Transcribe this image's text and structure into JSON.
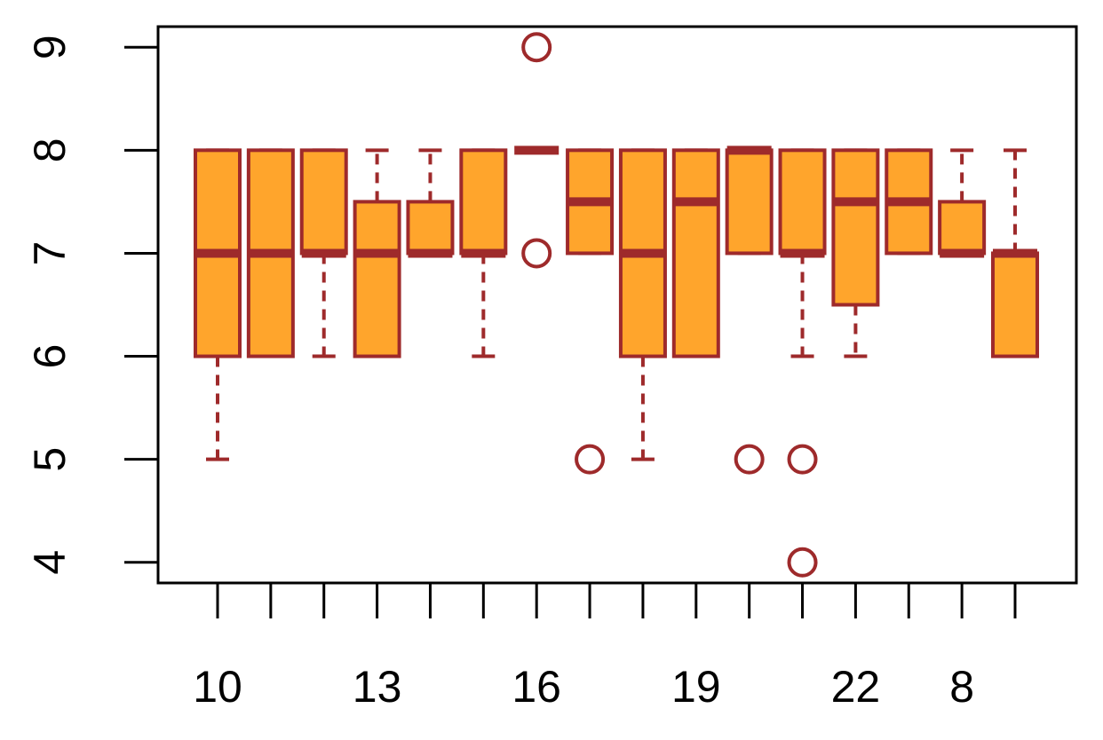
{
  "chart_data": {
    "type": "boxplot",
    "categories": [
      "10",
      null,
      null,
      "13",
      null,
      null,
      "16",
      null,
      null,
      "19",
      null,
      null,
      "22",
      null,
      "8",
      null
    ],
    "boxes": [
      {
        "whislo": 5,
        "q1": 6,
        "med": 7,
        "q3": 8,
        "whishi": 8,
        "outliers": []
      },
      {
        "whislo": 6,
        "q1": 6,
        "med": 7,
        "q3": 8,
        "whishi": 8,
        "outliers": []
      },
      {
        "whislo": 6,
        "q1": 7,
        "med": 7,
        "q3": 8,
        "whishi": 8,
        "outliers": []
      },
      {
        "whislo": 6,
        "q1": 6,
        "med": 7,
        "q3": 7.5,
        "whishi": 8,
        "outliers": []
      },
      {
        "whislo": 7,
        "q1": 7,
        "med": 7,
        "q3": 7.5,
        "whishi": 8,
        "outliers": []
      },
      {
        "whislo": 6,
        "q1": 7,
        "med": 7,
        "q3": 8,
        "whishi": 8,
        "outliers": []
      },
      {
        "whislo": 8,
        "q1": 8,
        "med": 8,
        "q3": 8,
        "whishi": 8,
        "outliers": [
          9,
          7
        ]
      },
      {
        "whislo": 7,
        "q1": 7,
        "med": 7.5,
        "q3": 8,
        "whishi": 8,
        "outliers": [
          5
        ]
      },
      {
        "whislo": 5,
        "q1": 6,
        "med": 7,
        "q3": 8,
        "whishi": 8,
        "outliers": []
      },
      {
        "whislo": 6,
        "q1": 6,
        "med": 7.5,
        "q3": 8,
        "whishi": 8,
        "outliers": []
      },
      {
        "whislo": 7,
        "q1": 7,
        "med": 8,
        "q3": 8,
        "whishi": 8,
        "outliers": [
          5
        ]
      },
      {
        "whislo": 6,
        "q1": 7,
        "med": 7,
        "q3": 8,
        "whishi": 8,
        "outliers": [
          5,
          4
        ]
      },
      {
        "whislo": 6,
        "q1": 6.5,
        "med": 7.5,
        "q3": 8,
        "whishi": 8,
        "outliers": []
      },
      {
        "whislo": 7,
        "q1": 7,
        "med": 7.5,
        "q3": 8,
        "whishi": 8,
        "outliers": []
      },
      {
        "whislo": 7,
        "q1": 7,
        "med": 7,
        "q3": 7.5,
        "whishi": 8,
        "outliers": []
      },
      {
        "whislo": 6,
        "q1": 6,
        "med": 7,
        "q3": 7,
        "whishi": 8,
        "outliers": []
      }
    ],
    "fill_color": "#ffa52c",
    "line_color": "#9e2a2b",
    "ylim": [
      3.8,
      9.2
    ],
    "yticks": [
      4,
      5,
      6,
      7,
      8,
      9
    ]
  }
}
